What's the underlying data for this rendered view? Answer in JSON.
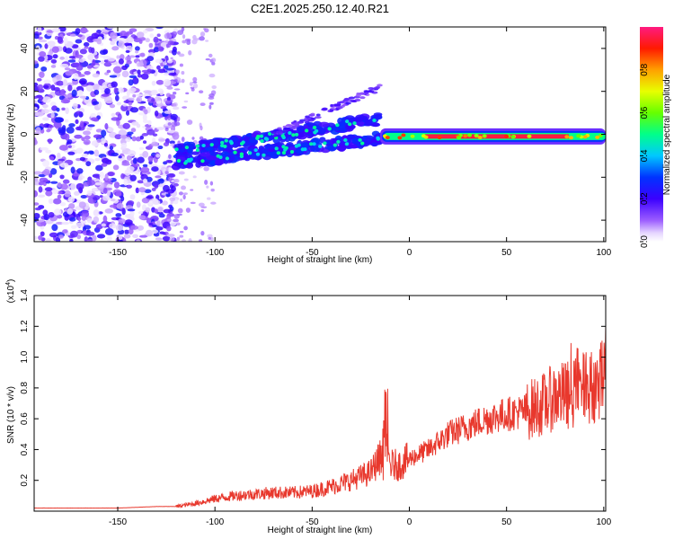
{
  "title": "C2E1.2025.250.12.40.R21",
  "chart_data": [
    {
      "type": "heatmap",
      "name": "spectrogram",
      "xlabel": "Height of straight line (km)",
      "ylabel": "Frequency (Hz)",
      "xlim": [
        -193,
        101
      ],
      "ylim": [
        -50,
        50
      ],
      "xticks": [
        -150,
        -100,
        -50,
        0,
        50,
        100
      ],
      "yticks": [
        -40,
        -20,
        0,
        20,
        40
      ],
      "colorbar": {
        "label": "Normalized spectral amplitude",
        "range": [
          0,
          1
        ],
        "ticks": [
          "0.0",
          "0.2",
          "0.4",
          "0.6",
          "0.8"
        ]
      },
      "regions": [
        {
          "desc": "broadband noise",
          "x": [
            -193,
            -120
          ],
          "f": [
            -50,
            50
          ],
          "amplitude": 0.25
        },
        {
          "desc": "rising traces",
          "x": [
            -120,
            -15
          ],
          "f_start": -8,
          "f_end": 3,
          "amplitude": 0.4
        },
        {
          "desc": "harmonic trace",
          "x": [
            -70,
            -15
          ],
          "f_start": 0,
          "f_end": 22,
          "amplitude": 0.25
        },
        {
          "desc": "steady tone",
          "x": [
            -15,
            101
          ],
          "f": -1,
          "amplitude": 0.95
        }
      ]
    },
    {
      "type": "line",
      "name": "snr",
      "xlabel": "Height of straight line (km)",
      "ylabel": "SNR (10 * v/v)",
      "exponent_label": "(x10",
      "exponent_value": "4",
      "exponent_close": ")",
      "xlim": [
        -193,
        101
      ],
      "ylim": [
        0,
        1.4
      ],
      "xticks": [
        -150,
        -100,
        -50,
        0,
        50,
        100
      ],
      "yticks": [
        0.2,
        0.4,
        0.6,
        0.8,
        1.0,
        1.2,
        1.4
      ],
      "ytick_labels": [
        "0.2",
        "0.4",
        "0.6",
        "0.8",
        "1.0",
        "1.2",
        "1.4"
      ],
      "series": [
        {
          "name": "SNR",
          "color": "#e8382d",
          "x": [
            -193,
            -170,
            -150,
            -130,
            -120,
            -110,
            -100,
            -90,
            -80,
            -70,
            -60,
            -50,
            -40,
            -30,
            -20,
            -15,
            -12,
            -10,
            -5,
            0,
            10,
            20,
            30,
            40,
            50,
            60,
            70,
            75,
            80,
            85,
            90,
            95,
            98,
            100,
            101
          ],
          "y": [
            0.02,
            0.02,
            0.02,
            0.03,
            0.03,
            0.05,
            0.08,
            0.1,
            0.11,
            0.12,
            0.12,
            0.13,
            0.16,
            0.2,
            0.25,
            0.35,
            0.5,
            0.3,
            0.3,
            0.34,
            0.4,
            0.5,
            0.55,
            0.6,
            0.63,
            0.65,
            0.7,
            0.75,
            0.75,
            0.77,
            0.8,
            0.82,
            0.8,
            0.9,
            1.0
          ]
        }
      ]
    }
  ]
}
